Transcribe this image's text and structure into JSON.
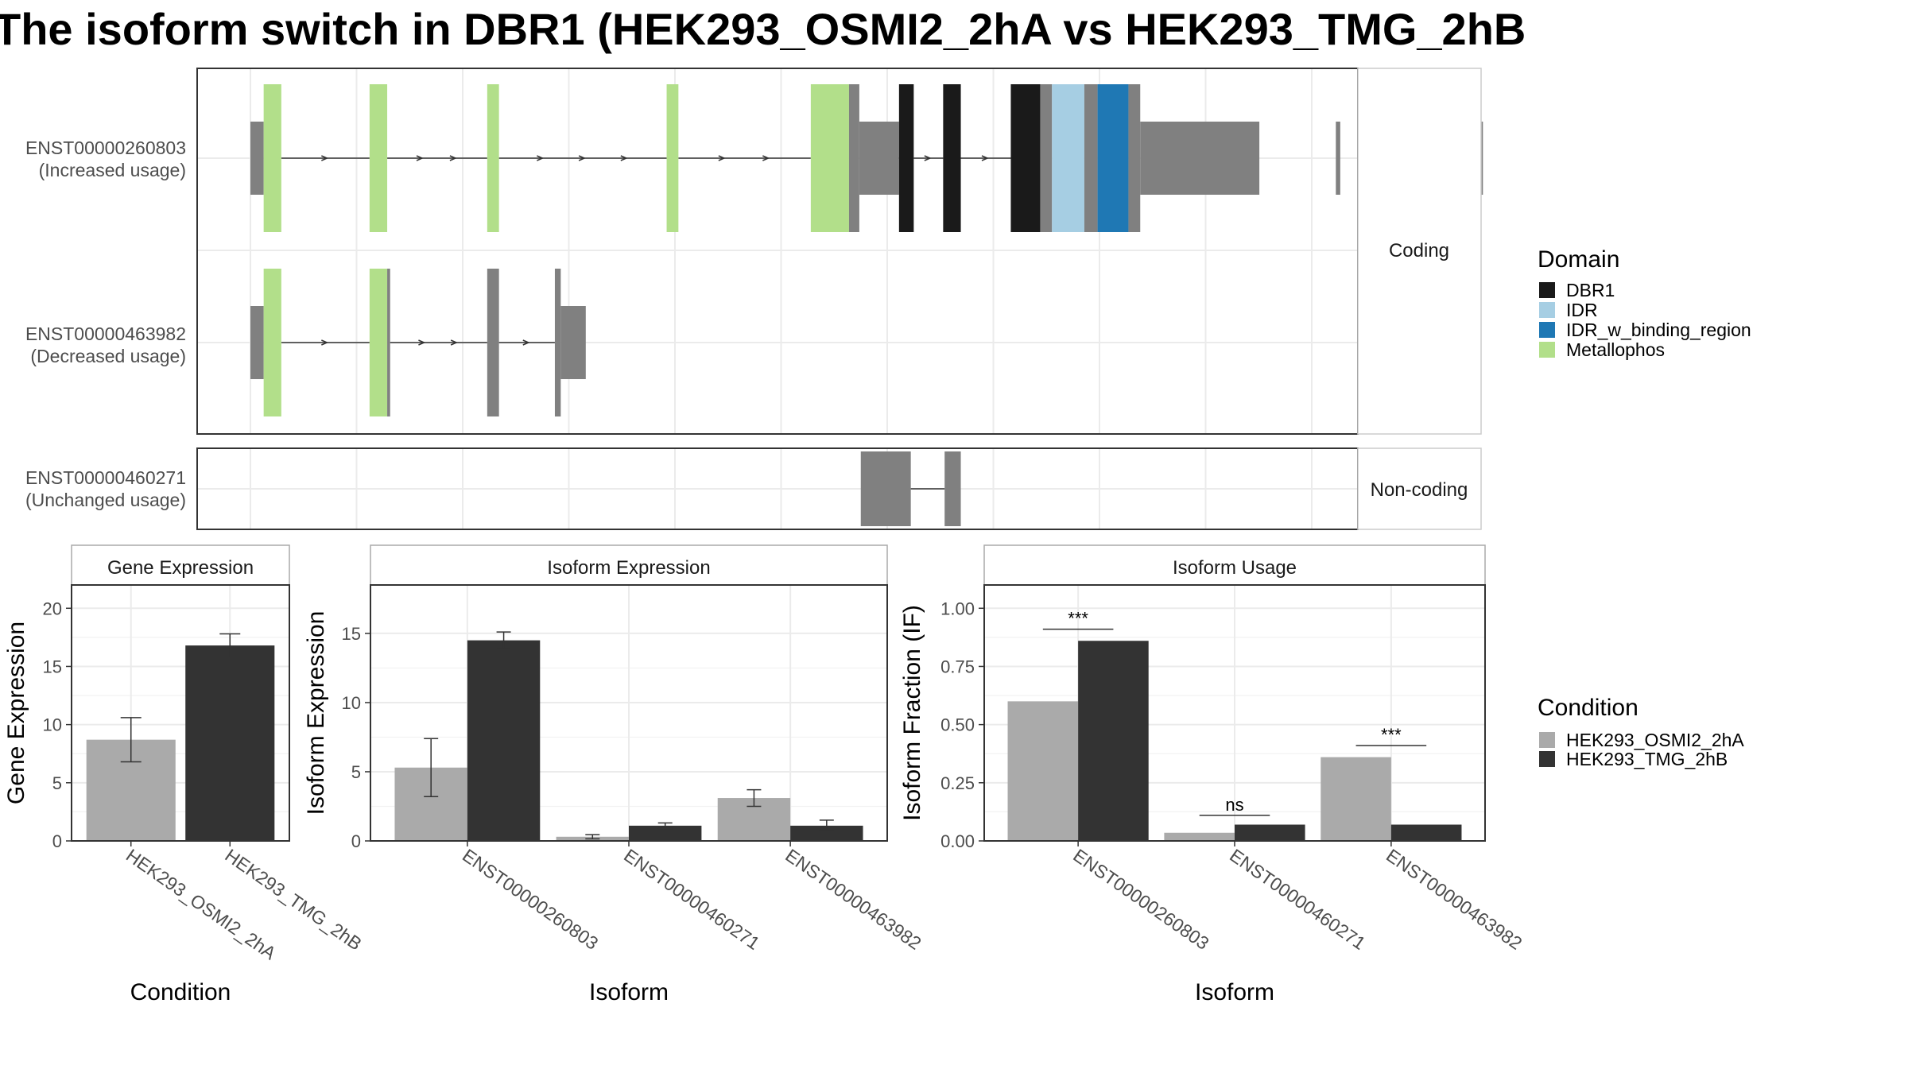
{
  "title": "The isoform switch in DBR1 (HEK293_OSMI2_2hA vs HEK293_TMG_2hB",
  "colors": {
    "DBR1": "#1a1a1a",
    "IDR": "#a6cee3",
    "IDR_w_binding_region": "#1f78b4",
    "Metallophos": "#b2df8a",
    "noncoding_exon": "#808080",
    "cond_a": "#aaaaaa",
    "cond_b": "#333333"
  },
  "structure": {
    "facets": [
      "Coding",
      "Non-coding"
    ],
    "transcripts": [
      {
        "id": "ENST00000260803",
        "note": "(Increased usage)",
        "facet": "Coding",
        "utr": [
          [
            0,
            4.5
          ],
          [
            207,
            220.5
          ],
          [
            369,
            370.5
          ],
          [
            404,
            408.5
          ],
          [
            413.5,
            419
          ]
        ],
        "cds": [
          [
            4.5,
            10.5,
            "Metallophos"
          ],
          [
            40.5,
            46.5,
            "Metallophos"
          ],
          [
            80.5,
            84.5,
            "Metallophos"
          ],
          [
            141.5,
            145.5,
            "Metallophos"
          ],
          [
            190.5,
            203.5,
            "Metallophos"
          ],
          [
            203.5,
            207,
            ""
          ],
          [
            220.5,
            225.5,
            "DBR1"
          ],
          [
            235.5,
            241.5,
            "DBR1"
          ],
          [
            258.5,
            268.5,
            "DBR1"
          ],
          [
            268.5,
            272.5,
            ""
          ],
          [
            272.5,
            283.5,
            "IDR"
          ],
          [
            283.5,
            288,
            ""
          ],
          [
            288,
            298.5,
            "IDR_w_binding_region"
          ],
          [
            298.5,
            302.5,
            ""
          ]
        ],
        "tail": [
          302.5,
          343
        ],
        "introns": [
          [
            10.5,
            40.5
          ],
          [
            46.5,
            80.5
          ],
          [
            84.5,
            141.5
          ],
          [
            145.5,
            190.5
          ],
          [
            207,
            220.5
          ],
          [
            225.5,
            235.5
          ],
          [
            241.5,
            258.5
          ]
        ]
      },
      {
        "id": "ENST00000463982",
        "note": "(Decreased usage)",
        "facet": "Coding",
        "utr": [
          [
            0,
            4.5
          ]
        ],
        "cds": [
          [
            4.5,
            10.5,
            "Metallophos"
          ],
          [
            40.5,
            46.5,
            "Metallophos"
          ],
          [
            46.5,
            47.5,
            ""
          ],
          [
            80.5,
            84.5,
            ""
          ],
          [
            103.5,
            105.5,
            ""
          ]
        ],
        "tail": [
          105.5,
          114
        ],
        "introns": [
          [
            10.5,
            40.5
          ],
          [
            47.5,
            80.5
          ],
          [
            84.5,
            103.5
          ]
        ]
      },
      {
        "id": "ENST00000460271",
        "note": "(Unchanged usage)",
        "facet": "Non-coding",
        "nc_exons": [
          [
            207.5,
            224.5
          ],
          [
            236,
            241.5
          ]
        ],
        "introns": [
          [
            224.5,
            236
          ]
        ]
      }
    ],
    "domain_legend_title": "Domain",
    "domains": [
      "DBR1",
      "IDR",
      "IDR_w_binding_region",
      "Metallophos"
    ]
  },
  "condition_legend_title": "Condition",
  "conditions": [
    "HEK293_OSMI2_2hA",
    "HEK293_TMG_2hB"
  ],
  "chart_data": [
    {
      "type": "bar",
      "title": "Gene Expression",
      "xlabel": "Condition",
      "ylabel": "Gene Expression",
      "ylim": [
        0,
        22
      ],
      "yticks": [
        0,
        5,
        10,
        15,
        20
      ],
      "categories": [
        "HEK293_OSMI2_2hA",
        "HEK293_TMG_2hB"
      ],
      "values": [
        8.7,
        16.8
      ],
      "errors": [
        [
          6.8,
          10.6
        ],
        [
          15.8,
          17.8
        ]
      ]
    },
    {
      "type": "bar",
      "title": "Isoform Expression",
      "xlabel": "Isoform",
      "ylabel": "Isoform Expression",
      "ylim": [
        0,
        18.5
      ],
      "yticks": [
        0,
        5,
        10,
        15
      ],
      "categories": [
        "ENST00000260803",
        "ENST00000460271",
        "ENST00000463982"
      ],
      "series": [
        {
          "name": "HEK293_OSMI2_2hA",
          "values": [
            5.3,
            0.3,
            3.1
          ],
          "errors": [
            [
              3.2,
              7.4
            ],
            [
              0.15,
              0.45
            ],
            [
              2.5,
              3.7
            ]
          ]
        },
        {
          "name": "HEK293_TMG_2hB",
          "values": [
            14.5,
            1.1,
            1.1
          ],
          "errors": [
            [
              13.9,
              15.1
            ],
            [
              0.9,
              1.3
            ],
            [
              0.75,
              1.5
            ]
          ]
        }
      ]
    },
    {
      "type": "bar",
      "title": "Isoform Usage",
      "xlabel": "Isoform",
      "ylabel": "Isoform Fraction (IF)",
      "ylim": [
        0,
        1.1
      ],
      "yticks": [
        "0.00",
        "0.25",
        "0.50",
        "0.75",
        "1.00"
      ],
      "categories": [
        "ENST00000260803",
        "ENST00000460271",
        "ENST00000463982"
      ],
      "series": [
        {
          "name": "HEK293_OSMI2_2hA",
          "values": [
            0.6,
            0.035,
            0.36
          ]
        },
        {
          "name": "HEK293_TMG_2hB",
          "values": [
            0.86,
            0.07,
            0.07
          ]
        }
      ],
      "significance": [
        "***",
        "ns",
        "***"
      ],
      "sig_y": [
        0.91,
        0.11,
        0.41
      ]
    }
  ]
}
